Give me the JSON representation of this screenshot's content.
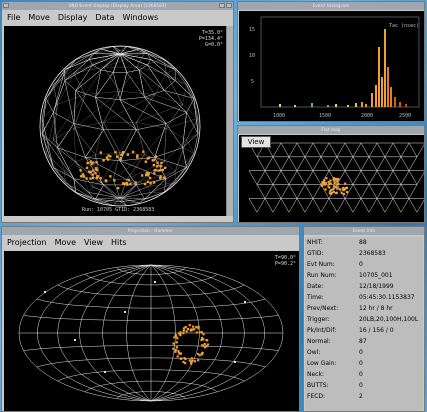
{
  "display_window": {
    "title": "SNO Event Display (Display Area) [2368583]",
    "menu": [
      "File",
      "Move",
      "Display",
      "Data",
      "Windows"
    ],
    "readout": [
      "T=35.0°",
      "P=134.4°",
      "G=0.0°"
    ],
    "footer": "Run: 10705  GTID: 2368583"
  },
  "histogram_window": {
    "title": "Event Histogram",
    "label": "Tac (nsec)",
    "y_ticks": [
      "15",
      "10",
      "5"
    ],
    "x_ticks": [
      "1000",
      "1500",
      "2000",
      "2500"
    ]
  },
  "flatmap_window": {
    "title": "Flat map",
    "view_button": "View"
  },
  "projection_window": {
    "title": "Projection - Hammer",
    "menu": [
      "Projection",
      "Move",
      "View",
      "Hits"
    ],
    "readout": [
      "T=90.0°",
      "P=90.2°"
    ]
  },
  "info_window": {
    "title": "Event Info",
    "rows": [
      {
        "key": "NHIT:",
        "value": "88"
      },
      {
        "key": "GTID:",
        "value": "2368583"
      },
      {
        "key": "Evt Num:",
        "value": "0"
      },
      {
        "key": "Run Num:",
        "value": "10705_001"
      },
      {
        "key": "Date:",
        "value": "12/18/1999"
      },
      {
        "key": "Time:",
        "value": "05:45:30.1153837"
      },
      {
        "key": "Prev/Next:",
        "value": "12 hr / 8 hr"
      },
      {
        "key": "Trigger:",
        "value": "20LB,20,100H,100L"
      },
      {
        "key": "Pk/Int/Dif:",
        "value": "16 / 156 / 0"
      },
      {
        "key": "Normal:",
        "value": "87"
      },
      {
        "key": "Owl:",
        "value": "0"
      },
      {
        "key": "Low Gain:",
        "value": "0"
      },
      {
        "key": "Neck:",
        "value": "0"
      },
      {
        "key": "BUTTS:",
        "value": "0"
      },
      {
        "key": "FECD:",
        "value": "2"
      }
    ]
  },
  "colors": {
    "hit_orange": "#f0a030",
    "grid_white": "#e8e8e8",
    "window_grey": "#c9c9c9"
  }
}
